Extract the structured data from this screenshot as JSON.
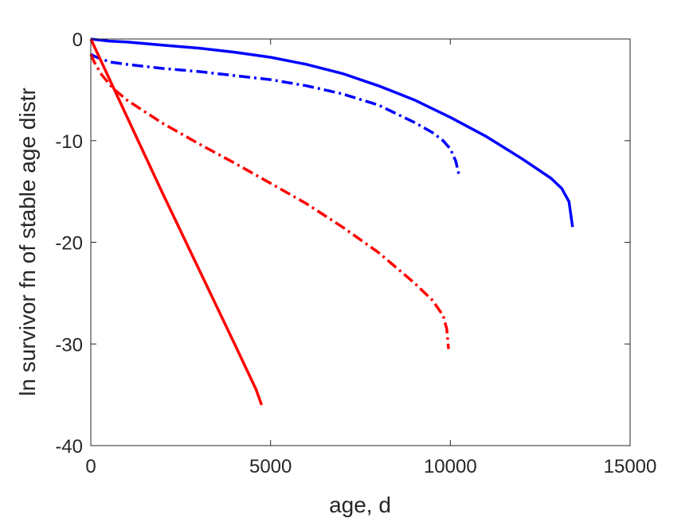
{
  "chart_data": {
    "type": "line",
    "title": "",
    "xlabel": "age, d",
    "ylabel": "ln survivor fn of stable age distr",
    "xlim": [
      0,
      15000
    ],
    "ylim": [
      -40,
      0
    ],
    "xticks": [
      0,
      5000,
      10000,
      15000
    ],
    "yticks": [
      0,
      -10,
      -20,
      -30,
      -40
    ],
    "xtick_labels": [
      "0",
      "5000",
      "10000",
      "15000"
    ],
    "ytick_labels": [
      "0",
      "-10",
      "-20",
      "-30",
      "-40"
    ],
    "grid": false,
    "series": [
      {
        "color": "#0000ff",
        "dash": "solid",
        "x": [
          0,
          500,
          1000,
          2000,
          3000,
          4000,
          5000,
          6000,
          7000,
          8000,
          9000,
          10000,
          11000,
          12000,
          12800,
          13100,
          13300,
          13400
        ],
        "y": [
          0,
          -0.2,
          -0.3,
          -0.6,
          -0.9,
          -1.3,
          -1.8,
          -2.5,
          -3.4,
          -4.6,
          -6.0,
          -7.7,
          -9.6,
          -11.8,
          -13.7,
          -14.7,
          -16.0,
          -18.5
        ]
      },
      {
        "color": "#0000ff",
        "dash": "dashdot",
        "x": [
          0,
          100,
          300,
          600,
          1000,
          2000,
          3000,
          4000,
          5000,
          6000,
          7000,
          8000,
          9000,
          9500,
          9800,
          10000,
          10150,
          10250
        ],
        "y": [
          -1.5,
          -1.7,
          -2.0,
          -2.3,
          -2.5,
          -2.9,
          -3.2,
          -3.6,
          -4.0,
          -4.6,
          -5.4,
          -6.5,
          -8.2,
          -9.2,
          -10.0,
          -10.8,
          -12.0,
          -13.5
        ]
      },
      {
        "color": "#ff0000",
        "dash": "dashdot",
        "x": [
          0,
          100,
          300,
          600,
          1000,
          2000,
          3000,
          4000,
          5000,
          6000,
          7000,
          8000,
          9000,
          9500,
          9800,
          9900,
          9950
        ],
        "y": [
          -1.5,
          -2.3,
          -3.5,
          -4.8,
          -6.0,
          -8.3,
          -10.3,
          -12.2,
          -14.2,
          -16.2,
          -18.5,
          -21.0,
          -24.0,
          -25.7,
          -27.2,
          -28.5,
          -30.5
        ]
      },
      {
        "color": "#ff0000",
        "dash": "solid",
        "x": [
          0,
          1000,
          2000,
          3000,
          4000,
          4600,
          4750
        ],
        "y": [
          0,
          -7.6,
          -15.2,
          -22.6,
          -30.0,
          -34.5,
          -36.0
        ]
      }
    ]
  }
}
